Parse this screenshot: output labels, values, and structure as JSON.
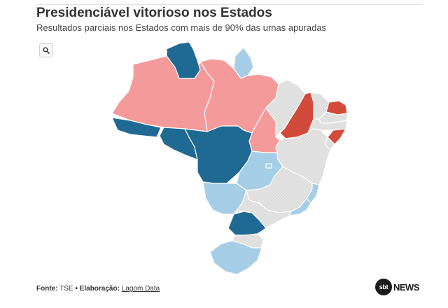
{
  "header": {
    "title": "Presidenciável vitorioso nos Estados",
    "subtitle": "Resultados parciais nos Estados com mais de 90% das urnas apuradas"
  },
  "toolbar": {
    "search_icon": "search-icon"
  },
  "colors": {
    "strong_blue": "#1f6a93",
    "light_blue": "#a5cde6",
    "light_red": "#f59a9a",
    "strong_red": "#d24b3a",
    "undecided_gray": "#e4e4e4"
  },
  "map": {
    "region": "Brasil",
    "states": [
      {
        "name": "RR",
        "category": "strong_blue"
      },
      {
        "name": "AP",
        "category": "light_blue"
      },
      {
        "name": "AM",
        "category": "light_red"
      },
      {
        "name": "PA",
        "category": "light_red"
      },
      {
        "name": "AC",
        "category": "strong_blue"
      },
      {
        "name": "RO",
        "category": "strong_blue"
      },
      {
        "name": "MT",
        "category": "strong_blue"
      },
      {
        "name": "TO",
        "category": "light_red"
      },
      {
        "name": "MA",
        "category": "undecided_gray"
      },
      {
        "name": "PI",
        "category": "strong_red"
      },
      {
        "name": "CE",
        "category": "undecided_gray"
      },
      {
        "name": "RN",
        "category": "strong_red"
      },
      {
        "name": "PB",
        "category": "undecided_gray"
      },
      {
        "name": "PE",
        "category": "undecided_gray"
      },
      {
        "name": "AL",
        "category": "strong_red"
      },
      {
        "name": "SE",
        "category": "undecided_gray"
      },
      {
        "name": "BA",
        "category": "undecided_gray"
      },
      {
        "name": "GO",
        "category": "light_blue"
      },
      {
        "name": "DF",
        "category": "light_blue"
      },
      {
        "name": "MS",
        "category": "light_blue"
      },
      {
        "name": "MG",
        "category": "undecided_gray"
      },
      {
        "name": "ES",
        "category": "light_blue"
      },
      {
        "name": "RJ",
        "category": "light_blue"
      },
      {
        "name": "SP",
        "category": "undecided_gray"
      },
      {
        "name": "PR",
        "category": "strong_blue"
      },
      {
        "name": "SC",
        "category": "undecided_gray"
      },
      {
        "name": "RS",
        "category": "light_blue"
      }
    ]
  },
  "footer": {
    "source_label": "Fonte:",
    "source_value": "TSE",
    "separator": "•",
    "credit_label": "Elaboração:",
    "credit_value": "Lagom Data"
  },
  "logo": {
    "circle_text": "sbt",
    "text": "NEWS"
  }
}
